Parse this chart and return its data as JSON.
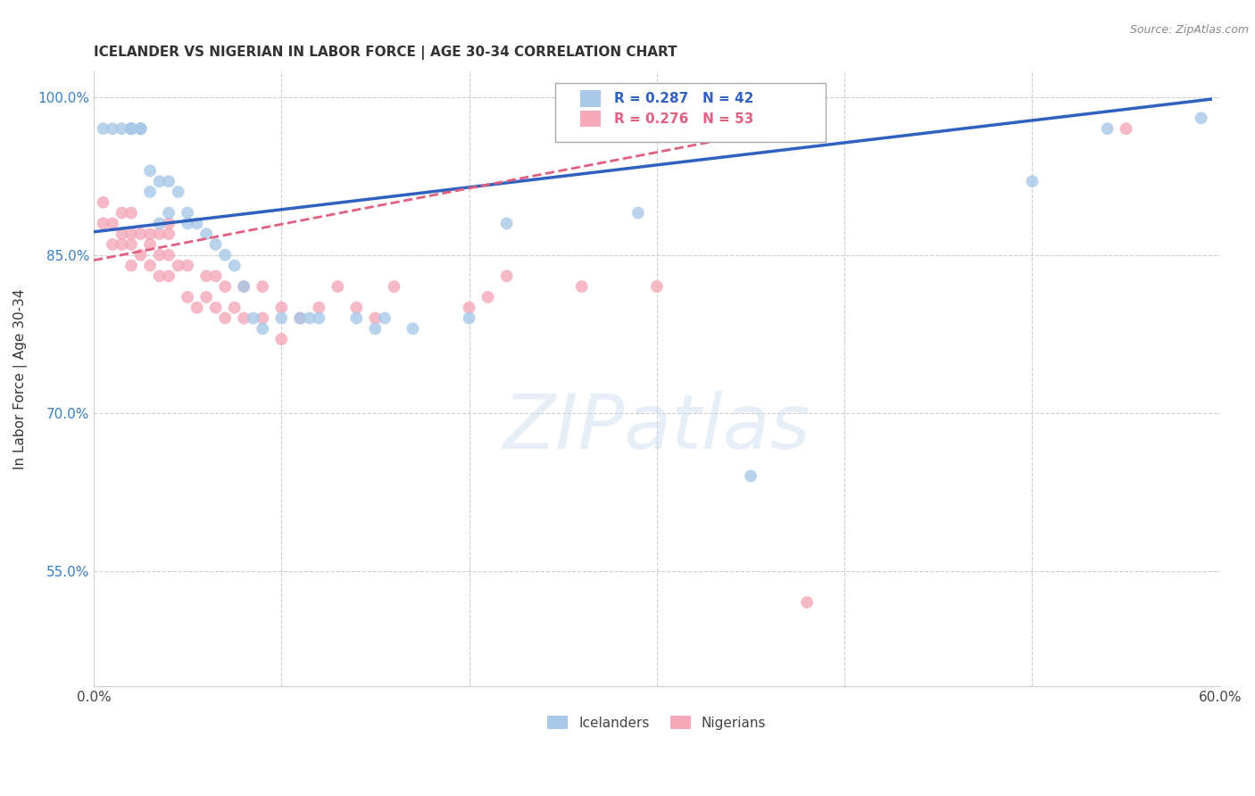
{
  "title": "ICELANDER VS NIGERIAN IN LABOR FORCE | AGE 30-34 CORRELATION CHART",
  "source": "Source: ZipAtlas.com",
  "ylabel": "In Labor Force | Age 30-34",
  "watermark": "ZIPatlas",
  "xlim": [
    0.0,
    0.6
  ],
  "ylim": [
    0.44,
    1.025
  ],
  "xticks": [
    0.0,
    0.1,
    0.2,
    0.3,
    0.4,
    0.5,
    0.6
  ],
  "xticklabels": [
    "0.0%",
    "",
    "",
    "",
    "",
    "",
    "60.0%"
  ],
  "yticks": [
    0.55,
    0.7,
    0.85,
    1.0
  ],
  "yticklabels": [
    "55.0%",
    "70.0%",
    "85.0%",
    "100.0%"
  ],
  "grid_color": "#cccccc",
  "background_color": "#ffffff",
  "legend_R_blue": "0.287",
  "legend_N_blue": "42",
  "legend_R_pink": "0.276",
  "legend_N_pink": "53",
  "icelander_color": "#a8c8e8",
  "nigerian_color": "#f4a8b8",
  "icelander_line_color": "#3060c0",
  "nigerian_line_color": "#e06080",
  "marker_size": 100,
  "icelanders_x": [
    0.005,
    0.01,
    0.015,
    0.02,
    0.02,
    0.02,
    0.02,
    0.025,
    0.025,
    0.025,
    0.03,
    0.03,
    0.035,
    0.035,
    0.04,
    0.04,
    0.045,
    0.05,
    0.05,
    0.055,
    0.06,
    0.065,
    0.07,
    0.075,
    0.08,
    0.085,
    0.09,
    0.1,
    0.11,
    0.115,
    0.12,
    0.14,
    0.15,
    0.155,
    0.17,
    0.2,
    0.22,
    0.29,
    0.35,
    0.5,
    0.54,
    0.59
  ],
  "icelanders_y": [
    0.97,
    0.97,
    0.97,
    0.97,
    0.97,
    0.97,
    0.97,
    0.97,
    0.97,
    0.97,
    0.91,
    0.93,
    0.88,
    0.92,
    0.89,
    0.92,
    0.91,
    0.88,
    0.89,
    0.88,
    0.87,
    0.86,
    0.85,
    0.84,
    0.82,
    0.79,
    0.78,
    0.79,
    0.79,
    0.79,
    0.79,
    0.79,
    0.78,
    0.79,
    0.78,
    0.79,
    0.88,
    0.89,
    0.64,
    0.92,
    0.97,
    0.98
  ],
  "nigerians_x": [
    0.005,
    0.005,
    0.01,
    0.01,
    0.015,
    0.015,
    0.015,
    0.02,
    0.02,
    0.02,
    0.02,
    0.025,
    0.025,
    0.03,
    0.03,
    0.03,
    0.035,
    0.035,
    0.035,
    0.04,
    0.04,
    0.04,
    0.04,
    0.045,
    0.05,
    0.05,
    0.055,
    0.06,
    0.06,
    0.065,
    0.065,
    0.07,
    0.07,
    0.075,
    0.08,
    0.08,
    0.09,
    0.09,
    0.1,
    0.1,
    0.11,
    0.12,
    0.13,
    0.14,
    0.15,
    0.16,
    0.2,
    0.21,
    0.22,
    0.26,
    0.3,
    0.38,
    0.55
  ],
  "nigerians_y": [
    0.88,
    0.9,
    0.86,
    0.88,
    0.86,
    0.87,
    0.89,
    0.84,
    0.86,
    0.87,
    0.89,
    0.85,
    0.87,
    0.84,
    0.86,
    0.87,
    0.83,
    0.85,
    0.87,
    0.83,
    0.85,
    0.87,
    0.88,
    0.84,
    0.81,
    0.84,
    0.8,
    0.81,
    0.83,
    0.8,
    0.83,
    0.79,
    0.82,
    0.8,
    0.79,
    0.82,
    0.79,
    0.82,
    0.77,
    0.8,
    0.79,
    0.8,
    0.82,
    0.8,
    0.79,
    0.82,
    0.8,
    0.81,
    0.83,
    0.82,
    0.82,
    0.52,
    0.97
  ],
  "blue_trendline_x": [
    0.0,
    0.595
  ],
  "blue_trendline_y": [
    0.872,
    0.998
  ],
  "pink_trendline_x": [
    0.0,
    0.38
  ],
  "pink_trendline_y": [
    0.845,
    0.975
  ]
}
